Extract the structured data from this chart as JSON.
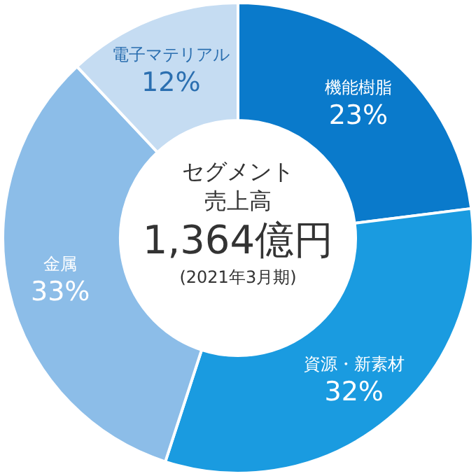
{
  "chart_data": {
    "type": "donut",
    "title": "セグメント売上高",
    "annotations": [
      "1,364億円",
      "(2021年3月期)"
    ],
    "categories": [
      "機能樹脂",
      "資源・新素材",
      "金属",
      "電子マテリアル"
    ],
    "values": [
      23,
      32,
      33,
      12
    ],
    "colors": [
      "#0a7acb",
      "#1a9be0",
      "#8cbde8",
      "#c5dcf2"
    ],
    "value_labels": [
      "23%",
      "32%",
      "33%",
      "12%"
    ],
    "legend": false
  }
}
